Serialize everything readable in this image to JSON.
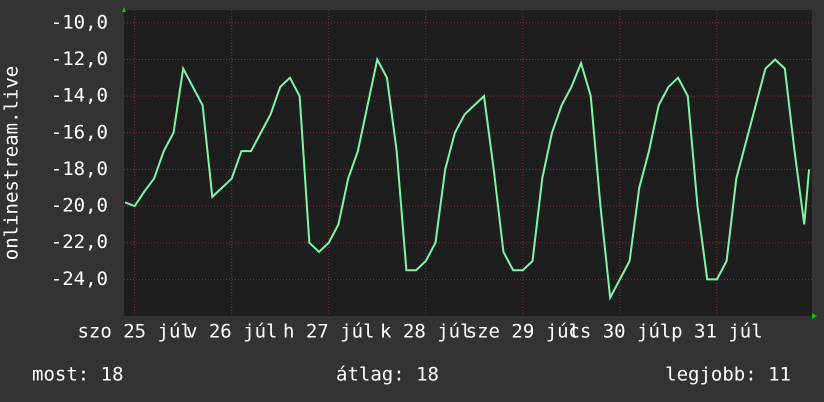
{
  "chart_data": {
    "type": "line",
    "ylabel": "onlinestream.live",
    "x": [
      24.9,
      25.0,
      25.1,
      25.2,
      25.3,
      25.4,
      25.5,
      25.6,
      25.7,
      25.8,
      25.9,
      26.0,
      26.1,
      26.2,
      26.3,
      26.4,
      26.5,
      26.6,
      26.7,
      26.8,
      26.9,
      27.0,
      27.1,
      27.2,
      27.3,
      27.4,
      27.5,
      27.6,
      27.7,
      27.8,
      27.9,
      28.0,
      28.1,
      28.2,
      28.3,
      28.4,
      28.5,
      28.6,
      28.7,
      28.8,
      28.9,
      29.0,
      29.1,
      29.2,
      29.3,
      29.4,
      29.5,
      29.6,
      29.7,
      29.8,
      29.9,
      30.0,
      30.1,
      30.2,
      30.3,
      30.4,
      30.5,
      30.6,
      30.7,
      30.8,
      30.9,
      31.0,
      31.1,
      31.2,
      31.3,
      31.4,
      31.5,
      31.6,
      31.7,
      31.8,
      31.9,
      31.95
    ],
    "series": [
      {
        "color": "#80f5a8",
        "values": [
          -19.8,
          -20.0,
          -19.2,
          -18.5,
          -17.0,
          -16.0,
          -12.5,
          -13.5,
          -14.5,
          -19.5,
          -19.0,
          -18.5,
          -17.0,
          -17.0,
          -16.0,
          -15.0,
          -13.5,
          -13.0,
          -14.0,
          -22.0,
          -22.5,
          -22.0,
          -21.0,
          -18.5,
          -17.0,
          -14.5,
          -12.0,
          -13.0,
          -17.0,
          -23.5,
          -23.5,
          -23.0,
          -22.0,
          -18.0,
          -16.0,
          -15.0,
          -14.5,
          -14.0,
          -18.0,
          -22.5,
          -23.5,
          -23.5,
          -23.0,
          -18.5,
          -16.0,
          -14.5,
          -13.5,
          -12.2,
          -14.0,
          -20.0,
          -25.0,
          -24.0,
          -23.0,
          -19.0,
          -17.0,
          -14.5,
          -13.5,
          -13.0,
          -14.0,
          -20.0,
          -24.0,
          -24.0,
          -23.0,
          -18.5,
          -16.5,
          -14.5,
          -12.5,
          -12.0,
          -12.5,
          -17.0,
          -21.0,
          -18.0
        ]
      }
    ],
    "xlim": [
      24.89,
      31.98
    ],
    "xticks": [
      {
        "value": 25,
        "label": "szo 25 júl"
      },
      {
        "value": 26,
        "label": "v 26 júl"
      },
      {
        "value": 27,
        "label": "h 27 júl"
      },
      {
        "value": 28,
        "label": "k 28 júl"
      },
      {
        "value": 29,
        "label": "sze 29 júl"
      },
      {
        "value": 30,
        "label": "cs 30 júl"
      },
      {
        "value": 31,
        "label": "p 31 júl"
      }
    ],
    "ylim": [
      -26,
      -9.3
    ],
    "yticks": [
      {
        "value": -10,
        "label": "-10,0"
      },
      {
        "value": -12,
        "label": "-12,0"
      },
      {
        "value": -14,
        "label": "-14,0"
      },
      {
        "value": -16,
        "label": "-16,0"
      },
      {
        "value": -18,
        "label": "-18,0"
      },
      {
        "value": -20,
        "label": "-20,0"
      },
      {
        "value": -22,
        "label": "-22,0"
      },
      {
        "value": -24,
        "label": "-24,0"
      }
    ],
    "grid": true
  },
  "footer": {
    "current": "most: 18",
    "average": "átlag: 18",
    "best": "legjobb: 11"
  }
}
